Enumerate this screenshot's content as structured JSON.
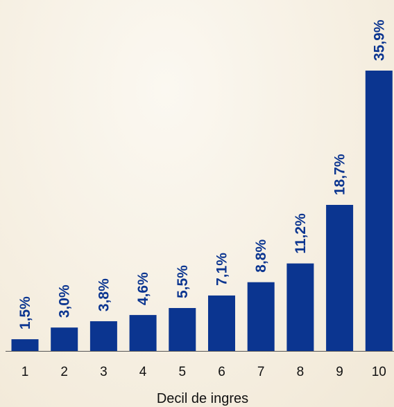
{
  "chart_data": {
    "type": "bar",
    "categories": [
      "1",
      "2",
      "3",
      "4",
      "5",
      "6",
      "7",
      "8",
      "9",
      "10"
    ],
    "values": [
      1.5,
      3.0,
      3.8,
      4.6,
      5.5,
      7.1,
      8.8,
      11.2,
      18.7,
      35.9
    ],
    "value_labels": [
      "1,5%",
      "3,0%",
      "3,8%",
      "4,6%",
      "5,5%",
      "7,1%",
      "8,8%",
      "11,2%",
      "18,7%",
      "35,9%"
    ],
    "title": "",
    "xlabel": "Decil de ingres",
    "ylabel": "",
    "ylim": [
      0,
      35.9
    ],
    "grid": false,
    "legend": "none",
    "bar_color": "#0b3590",
    "label_color": "#0b3590",
    "axis_color": "#555555",
    "text_color": "#111111"
  }
}
